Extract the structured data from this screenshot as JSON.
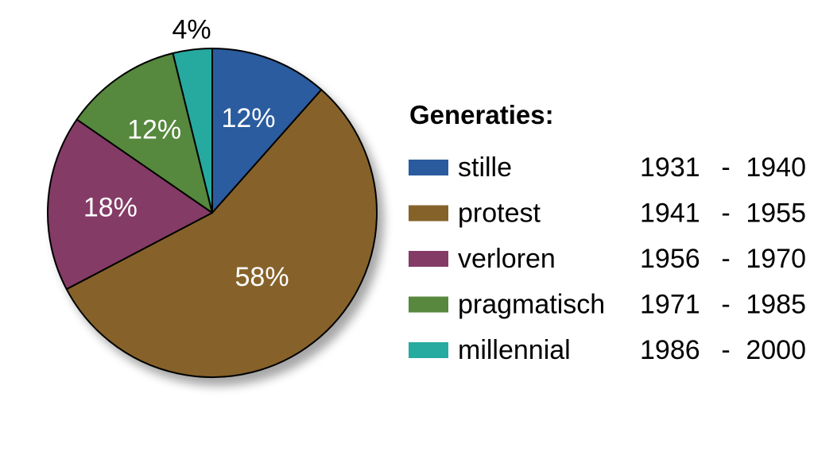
{
  "chart_data": {
    "type": "pie",
    "title": "",
    "legend_title": "Generaties:",
    "legend_placement": "right",
    "slices": [
      {
        "name": "stille",
        "value": 12,
        "label": "12%",
        "period_start": "1931",
        "period_end": "1940",
        "color": "#2a5b9f"
      },
      {
        "name": "protest",
        "value": 58,
        "label": "58%",
        "period_start": "1941",
        "period_end": "1955",
        "color": "#86622b"
      },
      {
        "name": "verloren",
        "value": 18,
        "label": "18%",
        "period_start": "1956",
        "period_end": "1970",
        "color": "#843b66"
      },
      {
        "name": "pragmatisch",
        "value": 12,
        "label": "12%",
        "period_start": "1971",
        "period_end": "1985",
        "color": "#57883d"
      },
      {
        "name": "millennial",
        "value": 4,
        "label": "4%",
        "period_start": "1986",
        "period_end": "2000",
        "color": "#27aaa0"
      }
    ],
    "period_separator": "-"
  }
}
